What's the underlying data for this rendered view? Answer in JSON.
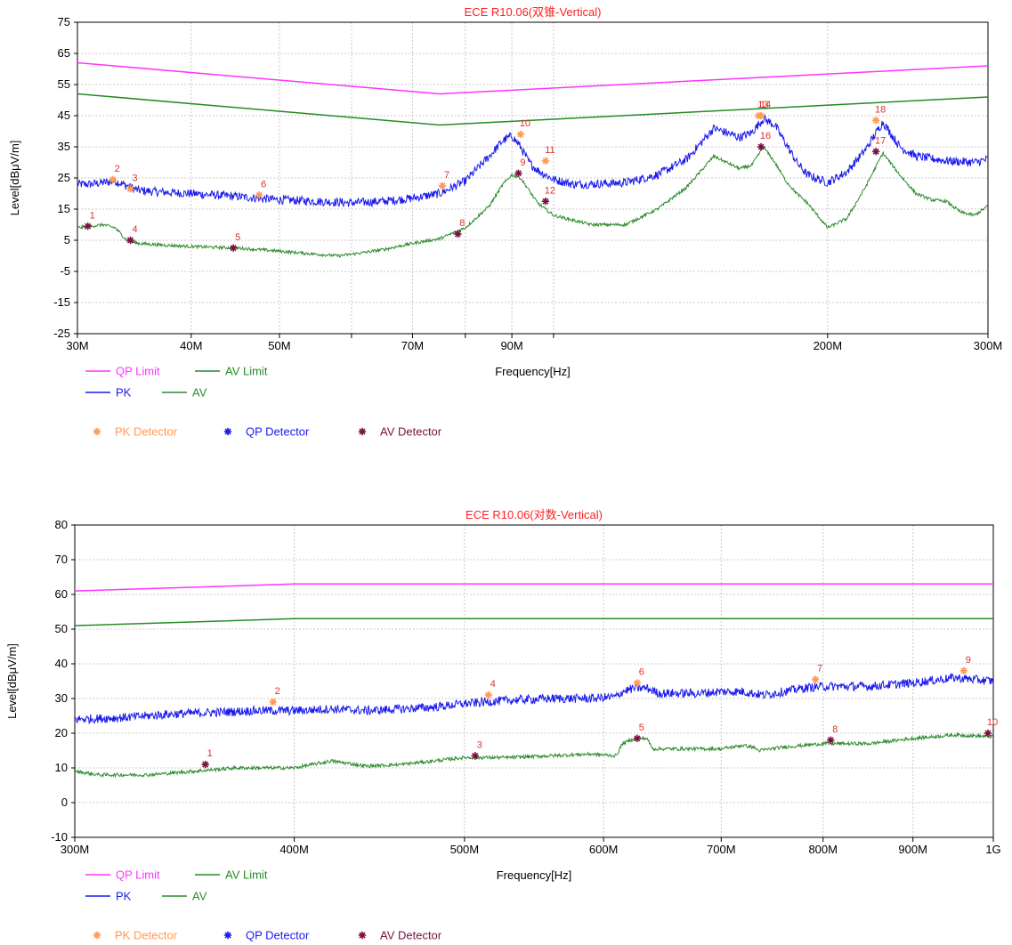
{
  "colors": {
    "qp_limit": "#ff33ff",
    "av_limit": "#228b22",
    "pk": "#1a1aee",
    "av": "#2e8b2e",
    "pk_detector": "#ff9955",
    "qp_detector": "#1a1aee",
    "av_detector": "#7a1040",
    "title": "#ff2020",
    "marker_label": "#e03030"
  },
  "legend": {
    "qp_limit": "QP Limit",
    "av_limit": "AV Limit",
    "pk": "PK",
    "av": "AV",
    "pk_detector": "PK Detector",
    "qp_detector": "QP Detector",
    "av_detector": "AV Detector"
  },
  "chart_data": [
    {
      "type": "line",
      "title": "ECE R10.06(双锥-Vertical)",
      "xlabel": "Frequency[Hz]",
      "ylabel": "Level[dBμV/m]",
      "xscale": "log",
      "xlim": [
        30,
        300
      ],
      "ylim": [
        -25,
        75
      ],
      "yticks": [
        -25,
        -15,
        -5,
        5,
        15,
        25,
        35,
        45,
        55,
        65,
        75
      ],
      "xticks": [
        {
          "v": 30,
          "label": "30M"
        },
        {
          "v": 40,
          "label": "40M"
        },
        {
          "v": 50,
          "label": "50M"
        },
        {
          "v": 60,
          "label": ""
        },
        {
          "v": 70,
          "label": "70M"
        },
        {
          "v": 80,
          "label": ""
        },
        {
          "v": 90,
          "label": "90M"
        },
        {
          "v": 100,
          "label": ""
        },
        {
          "v": 200,
          "label": "200M"
        },
        {
          "v": 300,
          "label": "300M"
        }
      ],
      "grid": true,
      "legend_position": "bottom-left",
      "series": [
        {
          "name": "QP Limit",
          "key": "qp_limit",
          "x": [
            30,
            75,
            300
          ],
          "y": [
            62,
            52,
            61
          ]
        },
        {
          "name": "AV Limit",
          "key": "av_limit",
          "x": [
            30,
            75,
            300
          ],
          "y": [
            52,
            42,
            51
          ]
        },
        {
          "name": "PK",
          "key": "pk",
          "noise": 1.4,
          "x": [
            30,
            31,
            32,
            33,
            34,
            35,
            37,
            40,
            45,
            50,
            55,
            60,
            65,
            70,
            75,
            80,
            85,
            88,
            90,
            92,
            94,
            96,
            100,
            105,
            110,
            120,
            130,
            140,
            150,
            160,
            165,
            170,
            175,
            180,
            185,
            190,
            200,
            210,
            220,
            230,
            240,
            250,
            270,
            290,
            300
          ],
          "y": [
            23,
            23,
            23.5,
            24,
            22.5,
            21,
            20.5,
            20,
            19,
            18,
            17.5,
            17,
            17.5,
            18.5,
            20,
            24,
            32,
            37,
            38.5,
            35,
            30,
            27.5,
            24.5,
            23,
            23,
            23.5,
            26,
            31,
            41,
            38,
            39.5,
            44,
            42,
            36,
            30,
            26,
            23.5,
            27,
            34,
            43,
            35,
            32,
            30.5,
            30,
            31
          ]
        },
        {
          "name": "AV",
          "key": "av",
          "noise": 0.5,
          "x": [
            30,
            31,
            32,
            33,
            34,
            35,
            37,
            40,
            45,
            50,
            55,
            58,
            60,
            65,
            70,
            75,
            80,
            85,
            88,
            90,
            92,
            94,
            96,
            100,
            110,
            120,
            130,
            140,
            150,
            160,
            165,
            170,
            175,
            180,
            185,
            190,
            200,
            210,
            220,
            230,
            240,
            250,
            260,
            270,
            280,
            290,
            300
          ],
          "y": [
            9,
            9.5,
            10,
            9,
            5,
            4,
            3.5,
            3,
            2.5,
            1.5,
            0.5,
            0,
            0.5,
            2,
            4,
            5.5,
            9,
            16,
            23,
            26,
            25,
            21,
            17,
            13,
            10,
            10,
            15,
            22,
            32,
            28,
            29,
            35,
            30,
            24,
            20,
            17,
            9,
            12,
            22,
            33,
            26,
            20,
            18,
            17.5,
            14,
            13,
            16
          ]
        }
      ],
      "markers": [
        {
          "label": "1",
          "x": 30.8,
          "y": 9.5,
          "detector": "av_detector"
        },
        {
          "label": "2",
          "x": 32.8,
          "y": 24.5,
          "detector": "pk_detector"
        },
        {
          "label": "3",
          "x": 34.3,
          "y": 21.5,
          "detector": "pk_detector"
        },
        {
          "label": "4",
          "x": 34.3,
          "y": 5,
          "detector": "av_detector"
        },
        {
          "label": "5",
          "x": 44.5,
          "y": 2.5,
          "detector": "av_detector"
        },
        {
          "label": "6",
          "x": 47.5,
          "y": 19.5,
          "detector": "pk_detector"
        },
        {
          "label": "7",
          "x": 75.5,
          "y": 22.5,
          "detector": "pk_detector"
        },
        {
          "label": "8",
          "x": 78.5,
          "y": 7,
          "detector": "av_detector"
        },
        {
          "label": "9",
          "x": 91.5,
          "y": 26.5,
          "detector": "av_detector"
        },
        {
          "label": "10",
          "x": 92,
          "y": 39,
          "detector": "pk_detector"
        },
        {
          "label": "11",
          "x": 98,
          "y": 30.5,
          "detector": "pk_detector"
        },
        {
          "label": "12",
          "x": 98,
          "y": 17.5,
          "detector": "av_detector"
        },
        {
          "label": "13",
          "x": 168,
          "y": 45,
          "detector": "pk_detector"
        },
        {
          "label": "14",
          "x": 169,
          "y": 45,
          "detector": "pk_detector"
        },
        {
          "label": "16",
          "x": 169,
          "y": 35,
          "detector": "av_detector"
        },
        {
          "label": "17",
          "x": 226,
          "y": 33.5,
          "detector": "av_detector"
        },
        {
          "label": "18",
          "x": 226,
          "y": 43.5,
          "detector": "pk_detector"
        }
      ]
    },
    {
      "type": "line",
      "title": "ECE R10.06(对数-Vertical)",
      "xlabel": "Frequency[Hz]",
      "ylabel": "Level[dBμV/m]",
      "xscale": "log",
      "xlim": [
        300,
        1000
      ],
      "ylim": [
        -10,
        80
      ],
      "yticks": [
        -10,
        0,
        10,
        20,
        30,
        40,
        50,
        60,
        70,
        80
      ],
      "xticks": [
        {
          "v": 300,
          "label": "300M"
        },
        {
          "v": 400,
          "label": "400M"
        },
        {
          "v": 500,
          "label": "500M"
        },
        {
          "v": 600,
          "label": "600M"
        },
        {
          "v": 700,
          "label": "700M"
        },
        {
          "v": 800,
          "label": "800M"
        },
        {
          "v": 900,
          "label": "900M"
        },
        {
          "v": 1000,
          "label": "1G"
        }
      ],
      "grid": true,
      "legend_position": "bottom-left",
      "series": [
        {
          "name": "QP Limit",
          "key": "qp_limit",
          "x": [
            300,
            400,
            1000
          ],
          "y": [
            61,
            63,
            63
          ]
        },
        {
          "name": "AV Limit",
          "key": "av_limit",
          "x": [
            300,
            400,
            1000
          ],
          "y": [
            51,
            53,
            53
          ]
        },
        {
          "name": "PK",
          "key": "pk",
          "noise": 1.3,
          "x": [
            300,
            320,
            340,
            360,
            380,
            400,
            420,
            440,
            460,
            480,
            500,
            530,
            560,
            590,
            610,
            615,
            625,
            635,
            645,
            660,
            680,
            700,
            720,
            740,
            760,
            780,
            800,
            850,
            900,
            950,
            1000
          ],
          "y": [
            24,
            24.5,
            25.5,
            26,
            26.5,
            26.5,
            27,
            26.5,
            27,
            27.5,
            28.5,
            29.5,
            30,
            30,
            30.5,
            32,
            33,
            33,
            31.5,
            31.5,
            31.5,
            32,
            32,
            31,
            32,
            33,
            33.5,
            33.5,
            34.5,
            36,
            35
          ]
        },
        {
          "name": "AV",
          "key": "av",
          "noise": 0.5,
          "x": [
            300,
            310,
            330,
            350,
            370,
            400,
            420,
            440,
            460,
            480,
            500,
            530,
            560,
            590,
            610,
            615,
            625,
            635,
            640,
            660,
            700,
            720,
            730,
            735,
            760,
            800,
            850,
            900,
            950,
            1000
          ],
          "y": [
            9,
            8,
            8,
            9,
            10,
            10,
            12,
            10.5,
            11,
            12,
            13,
            13,
            13.5,
            14,
            13.5,
            17,
            18.5,
            18.5,
            15.5,
            15.5,
            15.5,
            16.5,
            16,
            15,
            16,
            17,
            17,
            18.5,
            19.5,
            19
          ]
        }
      ],
      "markers": [
        {
          "label": "1",
          "x": 356,
          "y": 11,
          "detector": "av_detector"
        },
        {
          "label": "2",
          "x": 389,
          "y": 29,
          "detector": "pk_detector"
        },
        {
          "label": "3",
          "x": 507,
          "y": 13.5,
          "detector": "av_detector"
        },
        {
          "label": "4",
          "x": 516,
          "y": 31,
          "detector": "pk_detector"
        },
        {
          "label": "5",
          "x": 627,
          "y": 18.5,
          "detector": "av_detector"
        },
        {
          "label": "6",
          "x": 627,
          "y": 34.5,
          "detector": "pk_detector"
        },
        {
          "label": "7",
          "x": 792,
          "y": 35.5,
          "detector": "pk_detector"
        },
        {
          "label": "8",
          "x": 808,
          "y": 18,
          "detector": "av_detector"
        },
        {
          "label": "9",
          "x": 962,
          "y": 38,
          "detector": "pk_detector"
        },
        {
          "label": "10",
          "x": 993,
          "y": 20,
          "detector": "av_detector"
        }
      ]
    }
  ]
}
